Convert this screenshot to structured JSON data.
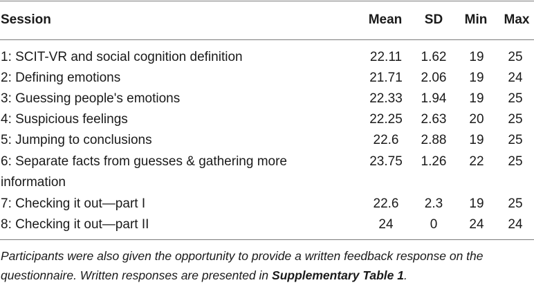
{
  "header": {
    "session": "Session",
    "mean": "Mean",
    "sd": "SD",
    "min": "Min",
    "max": "Max"
  },
  "rows": [
    {
      "session": "1: SCIT-VR and social cognition definition",
      "mean": "22.11",
      "sd": "1.62",
      "min": "19",
      "max": "25"
    },
    {
      "session": "2: Defining emotions",
      "mean": "21.71",
      "sd": "2.06",
      "min": "19",
      "max": "24"
    },
    {
      "session": "3: Guessing people's emotions",
      "mean": "22.33",
      "sd": "1.94",
      "min": "19",
      "max": "25"
    },
    {
      "session": "4: Suspicious feelings",
      "mean": "22.25",
      "sd": "2.63",
      "min": "20",
      "max": "25"
    },
    {
      "session": "5: Jumping to conclusions",
      "mean": "22.6",
      "sd": "2.88",
      "min": "19",
      "max": "25"
    },
    {
      "session": "6: Separate facts from guesses & gathering more",
      "session_cont": "information",
      "mean": "23.75",
      "sd": "1.26",
      "min": "22",
      "max": "25"
    },
    {
      "session": "7: Checking it out—part I",
      "mean": "22.6",
      "sd": "2.3",
      "min": "19",
      "max": "25"
    },
    {
      "session": "8: Checking it out—part II",
      "mean": "24",
      "sd": "0",
      "min": "24",
      "max": "24"
    }
  ],
  "footnote": {
    "text_1": "Participants were also given the opportunity to provide a written feedback response on the",
    "text_2": "questionnaire. Written responses are presented in ",
    "bold": "Supplementary Table 1",
    "end": "."
  }
}
